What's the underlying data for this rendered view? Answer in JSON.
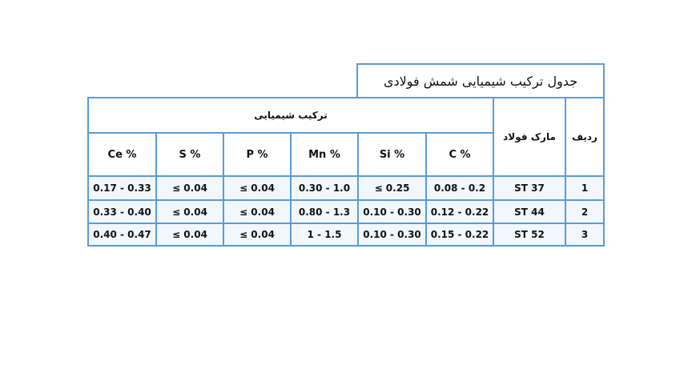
{
  "title": "جدول ترکیب شیمیایی شمش فولادی",
  "headers": {
    "row_label": "ردیف",
    "grade": "مارک فولاد",
    "composition": "ترکیب شیمیایی",
    "columns": [
      "C %",
      "Si %",
      "Mn %",
      "P %",
      "S %",
      "Ce %"
    ]
  },
  "rows": [
    [
      "1",
      "ST 37",
      "0.08 - 0.2",
      "≤ 0.25",
      "0.30 - 1.0",
      "≤ 0.04",
      "≤ 0.04",
      "0.17 - 0.33"
    ],
    [
      "2",
      "ST 44",
      "0.12 - 0.22",
      "0.10 - 0.30",
      "0.80 - 1.3",
      "≤ 0.04",
      "≤ 0.04",
      "0.33 - 0.40"
    ],
    [
      "3",
      "ST 52",
      "0.15 - 0.22",
      "0.10 - 0.30",
      "1 - 1.5",
      "≤ 0.04",
      "≤ 0.04",
      "0.40 - 0.47"
    ]
  ]
}
